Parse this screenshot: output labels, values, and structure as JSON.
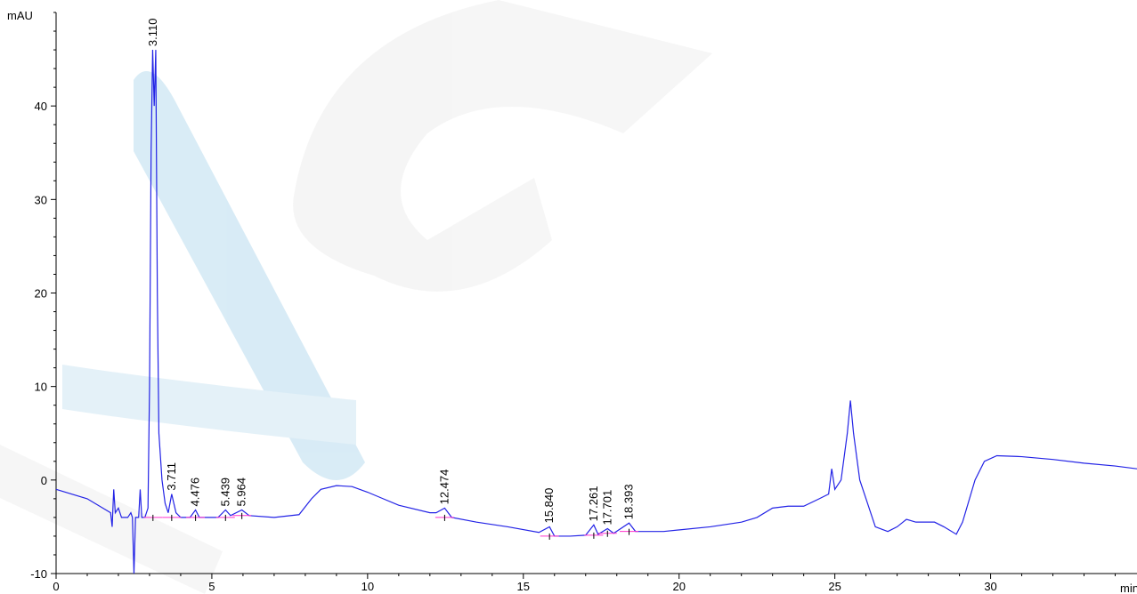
{
  "chart_data": {
    "type": "line",
    "x_label": "min",
    "y_label": "mAU",
    "xlim": [
      0,
      34.7
    ],
    "ylim": [
      -10,
      50
    ],
    "xticks": [
      0,
      5,
      10,
      15,
      20,
      25,
      30
    ],
    "yticks": [
      -10,
      0,
      10,
      20,
      30,
      40
    ],
    "series": [
      {
        "color": "#2323e6",
        "x": [
          0,
          1,
          1.5,
          1.75,
          1.8,
          1.85,
          1.9,
          2.0,
          2.1,
          2.3,
          2.4,
          2.45,
          2.5,
          2.55,
          2.65,
          2.7,
          2.75,
          2.85,
          2.95,
          3.0,
          3.05,
          3.1,
          3.15,
          3.2,
          3.25,
          3.3,
          3.4,
          3.5,
          3.6,
          3.711,
          3.85,
          4.0,
          4.3,
          4.476,
          4.6,
          5.2,
          5.439,
          5.6,
          5.964,
          6.2,
          7.0,
          7.8,
          8.2,
          8.5,
          9.0,
          9.5,
          10.0,
          10.5,
          11,
          12,
          12.2,
          12.474,
          12.7,
          13.5,
          14.5,
          15.5,
          15.84,
          16.0,
          16.5,
          17.0,
          17.261,
          17.4,
          17.701,
          17.9,
          18.393,
          18.6,
          19.5,
          21,
          22,
          22.5,
          23,
          23.5,
          24,
          24.5,
          24.8,
          24.9,
          25.0,
          25.2,
          25.4,
          25.5,
          25.6,
          25.8,
          26.0,
          26.3,
          26.7,
          27.0,
          27.3,
          27.6,
          28.2,
          28.5,
          28.9,
          29.1,
          29.5,
          29.8,
          30.2,
          31,
          32,
          33,
          34,
          34.7
        ],
        "values": [
          -1.0,
          -2,
          -3,
          -3.5,
          -5,
          -1,
          -3.5,
          -3,
          -4,
          -4,
          -3.5,
          -4,
          -10,
          -4,
          -4,
          -1,
          -4,
          -4,
          -3,
          10,
          35,
          46,
          40,
          46,
          20,
          5,
          0,
          -2.5,
          -3.5,
          -1.5,
          -3.5,
          -4,
          -4,
          -3.2,
          -4,
          -4,
          -3.2,
          -3.8,
          -3.2,
          -3.8,
          -4,
          -3.7,
          -2,
          -1,
          -0.6,
          -0.7,
          -1.3,
          -2,
          -2.7,
          -3.5,
          -3.5,
          -3.0,
          -4,
          -4.5,
          -5,
          -5.6,
          -5.0,
          -6,
          -6,
          -5.9,
          -4.8,
          -5.8,
          -5.2,
          -5.7,
          -4.6,
          -5.5,
          -5.5,
          -5,
          -4.5,
          -4,
          -3,
          -2.8,
          -2.8,
          -2,
          -1.5,
          1.2,
          -1,
          0,
          5,
          8.5,
          5,
          0,
          -2,
          -5,
          -5.5,
          -5,
          -4.2,
          -4.5,
          -4.5,
          -5,
          -5.8,
          -4.5,
          0,
          2,
          2.6,
          2.5,
          2.2,
          1.8,
          1.5,
          1.2
        ]
      }
    ],
    "peaks": [
      {
        "value": 3.11,
        "label": "3.110"
      },
      {
        "value": 3.711,
        "label": "3.711"
      },
      {
        "value": 4.476,
        "label": "4.476"
      },
      {
        "value": 5.439,
        "label": "5.439"
      },
      {
        "value": 5.964,
        "label": "5.964"
      },
      {
        "value": 12.474,
        "label": "12.474"
      },
      {
        "value": 15.84,
        "label": "15.840"
      },
      {
        "value": 17.261,
        "label": "17.261"
      },
      {
        "value": 17.701,
        "label": "17.701"
      },
      {
        "value": 18.393,
        "label": "18.393"
      }
    ]
  }
}
